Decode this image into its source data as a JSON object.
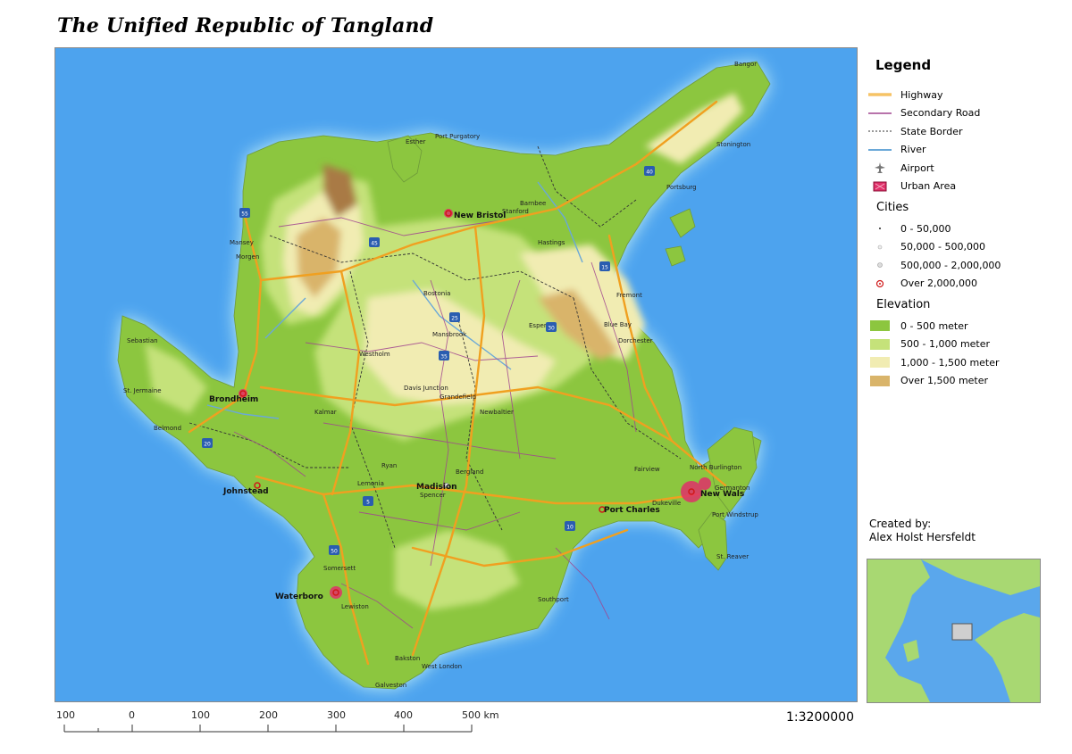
{
  "title": "The Unified Republic of Tangland",
  "legend": {
    "title": "Legend",
    "items": [
      {
        "label": "Highway",
        "symbol": "highway",
        "color": "#f0a020"
      },
      {
        "label": "Secondary Road",
        "symbol": "secondary",
        "color": "#a0458f"
      },
      {
        "label": "State Border",
        "symbol": "border",
        "color": "#333333"
      },
      {
        "label": "River",
        "symbol": "river",
        "color": "#6aa8d8"
      },
      {
        "label": "Airport",
        "symbol": "airport",
        "color": "#777777"
      },
      {
        "label": "Urban Area",
        "symbol": "urban",
        "color": "#e0306a"
      }
    ],
    "cities_title": "Cities",
    "cities": [
      {
        "label": "0 - 50,000",
        "symbol": "dot-small"
      },
      {
        "label": "50,000 - 500,000",
        "symbol": "dot-medium"
      },
      {
        "label": "500,000 - 2,000,000",
        "symbol": "dot-large"
      },
      {
        "label": "Over 2,000,000",
        "symbol": "dot-capital"
      }
    ],
    "elevation_title": "Elevation",
    "elevation": [
      {
        "label": "0 - 500 meter",
        "color": "#8cc63f"
      },
      {
        "label": "500 - 1,000 meter",
        "color": "#c5e27a"
      },
      {
        "label": "1,000 - 1,500 meter",
        "color": "#f1ecb2"
      },
      {
        "label": "Over 1,500 meter",
        "color": "#d9b46a"
      }
    ]
  },
  "credit": {
    "line1": "Created by:",
    "line2": "Alex Holst Hersfeldt"
  },
  "scale": {
    "ticks": [
      "100",
      "0",
      "100",
      "200",
      "300",
      "400",
      "500 km"
    ],
    "ratio": "1:3200000"
  },
  "map": {
    "colors": {
      "sea": "#4da3ee",
      "coast_glow": "#b8ecf5",
      "lowland": "#8cc63f",
      "midland": "#c5e27a",
      "upland": "#f1ecb2",
      "highland": "#d9b46a",
      "peak": "#a97a45"
    },
    "major_cities": [
      "New Bristol",
      "Brondheim",
      "Johnstead",
      "Madision",
      "Port Charles",
      "New Wals",
      "Waterboro"
    ],
    "cities": [
      "Bostonia",
      "Mansbrook",
      "Esperan",
      "Davis Junction",
      "Grandefield",
      "Kalmar",
      "Westholm",
      "Newbaltier",
      "Lemonia",
      "Spencer",
      "Bergland",
      "Ryan",
      "Dukeville",
      "Fairview",
      "North Burlington",
      "Germanton",
      "Port Windstrup",
      "St. Reaver",
      "Sebastian",
      "St. Jermaine",
      "Belmond",
      "Mansey",
      "Morgen",
      "Esther",
      "Port Purgatory",
      "Stanford",
      "Barnbee",
      "Hastings",
      "Blue Bay",
      "Stonington",
      "Portsburg",
      "Bangor",
      "West London",
      "Bakston",
      "Galveston",
      "Somersett",
      "Lewiston",
      "Southport",
      "Fremont",
      "Dorchester"
    ],
    "highway_shields": [
      "55",
      "45",
      "20",
      "25",
      "35",
      "30",
      "15",
      "40",
      "10",
      "5",
      "50"
    ]
  }
}
